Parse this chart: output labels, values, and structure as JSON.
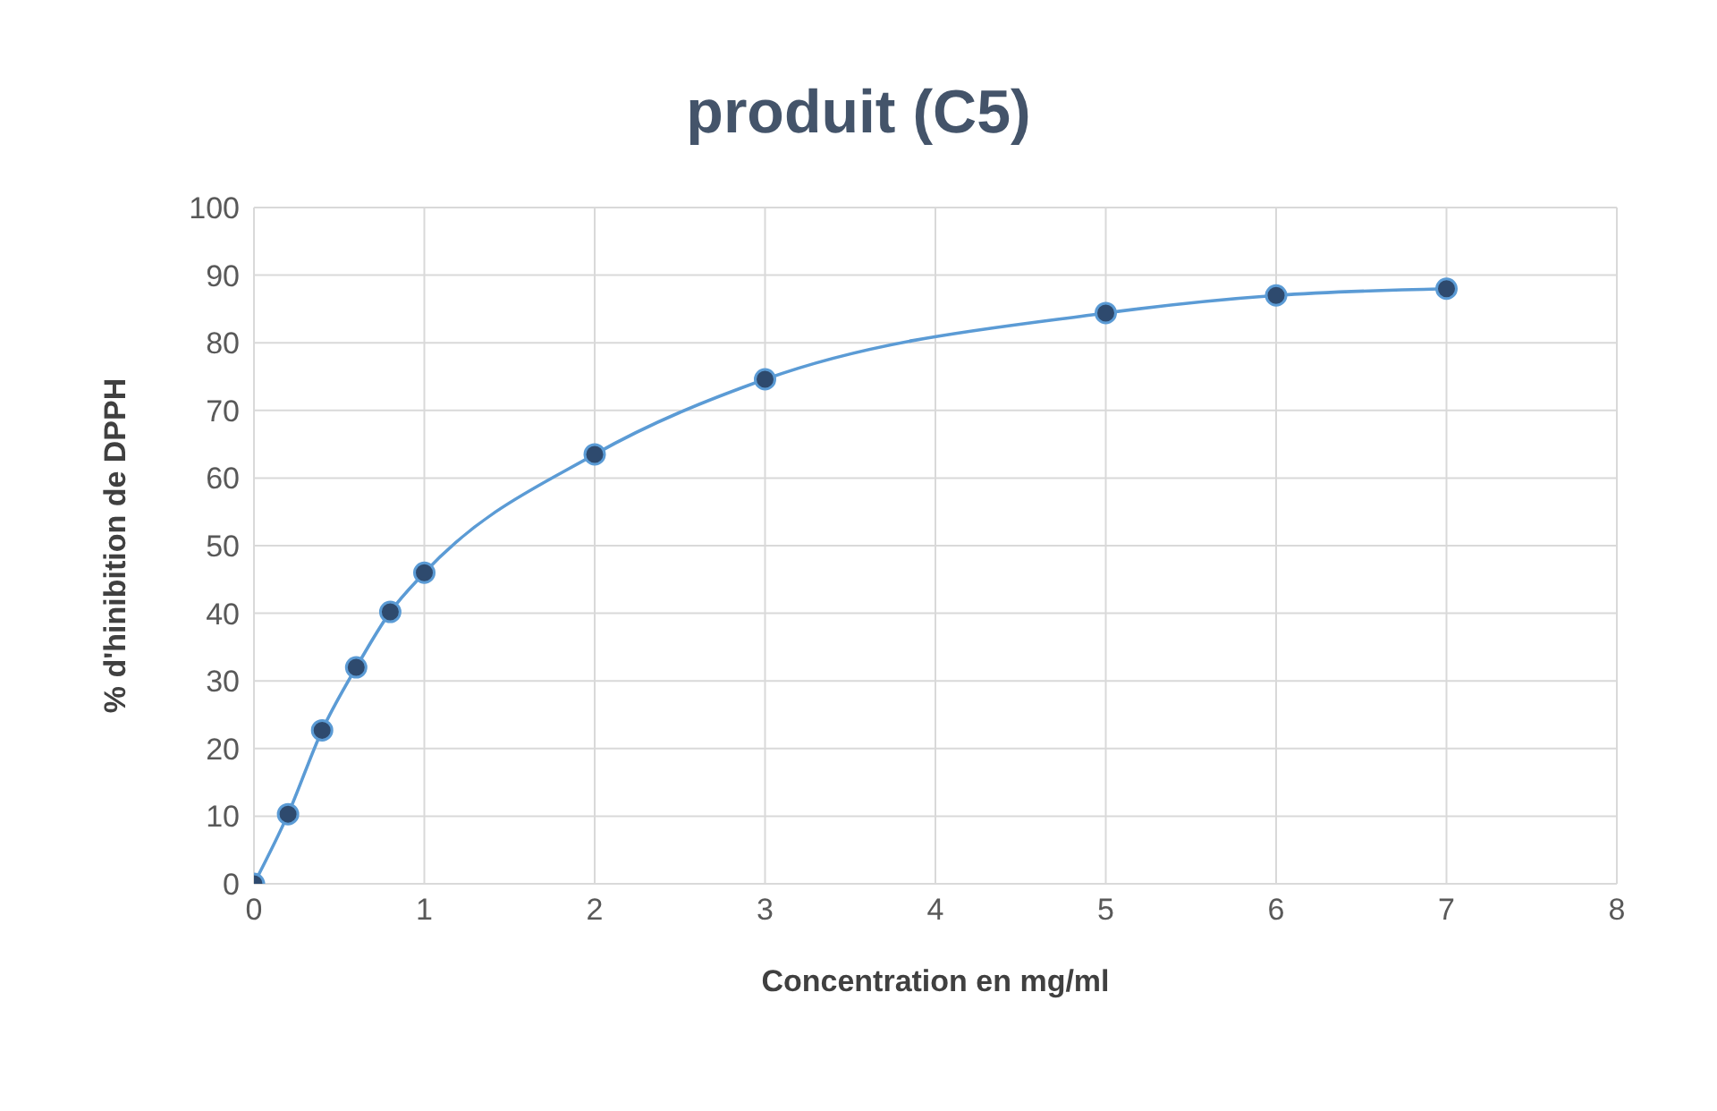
{
  "chart_data": {
    "type": "line",
    "title": "produit (C5)",
    "xlabel": "Concentration en mg/ml",
    "ylabel": "% d'hinibition de DPPH",
    "x": [
      0,
      0.2,
      0.4,
      0.6,
      0.8,
      1,
      2,
      3,
      5,
      6,
      7
    ],
    "series": [
      {
        "color": "#5b9bd5",
        "values": [
          0,
          10.3,
          22.7,
          32,
          40.2,
          46,
          63.5,
          74.6,
          84.4,
          87,
          88
        ]
      }
    ],
    "xlim": [
      0,
      8
    ],
    "xticks": [
      0,
      1,
      2,
      3,
      4,
      5,
      6,
      7,
      8
    ],
    "ylim": [
      0,
      100
    ],
    "yticks": [
      0,
      10,
      20,
      30,
      40,
      50,
      60,
      70,
      80,
      90,
      100
    ],
    "grid": true,
    "marker": "circle",
    "line_style": "solid",
    "legend": false
  }
}
